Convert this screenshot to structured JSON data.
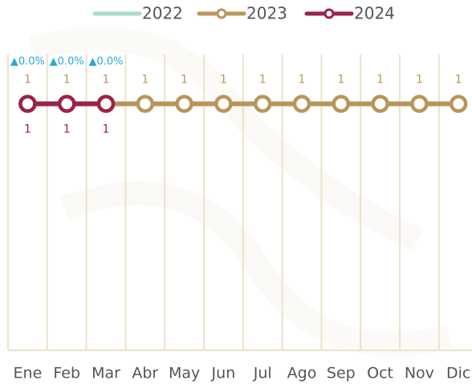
{
  "chart_data": {
    "type": "line",
    "categories": [
      "Ene",
      "Feb",
      "Mar",
      "Abr",
      "May",
      "Jun",
      "Jul",
      "Ago",
      "Sep",
      "Oct",
      "Nov",
      "Dic"
    ],
    "series": [
      {
        "name": "2022",
        "color": "#a8dcd1",
        "values": [
          null,
          null,
          null,
          null,
          null,
          null,
          null,
          null,
          null,
          null,
          null,
          null
        ]
      },
      {
        "name": "2023",
        "color": "#b8965a",
        "values": [
          1,
          1,
          1,
          1,
          1,
          1,
          1,
          1,
          1,
          1,
          1,
          1
        ]
      },
      {
        "name": "2024",
        "color": "#9b2247",
        "values": [
          1,
          1,
          1,
          null,
          null,
          null,
          null,
          null,
          null,
          null,
          null,
          null
        ]
      }
    ],
    "changes": [
      "▲0.0%",
      "▲0.0%",
      "▲0.0%"
    ],
    "ylim": [
      0,
      1.2
    ],
    "grid": true,
    "legend": "top"
  }
}
